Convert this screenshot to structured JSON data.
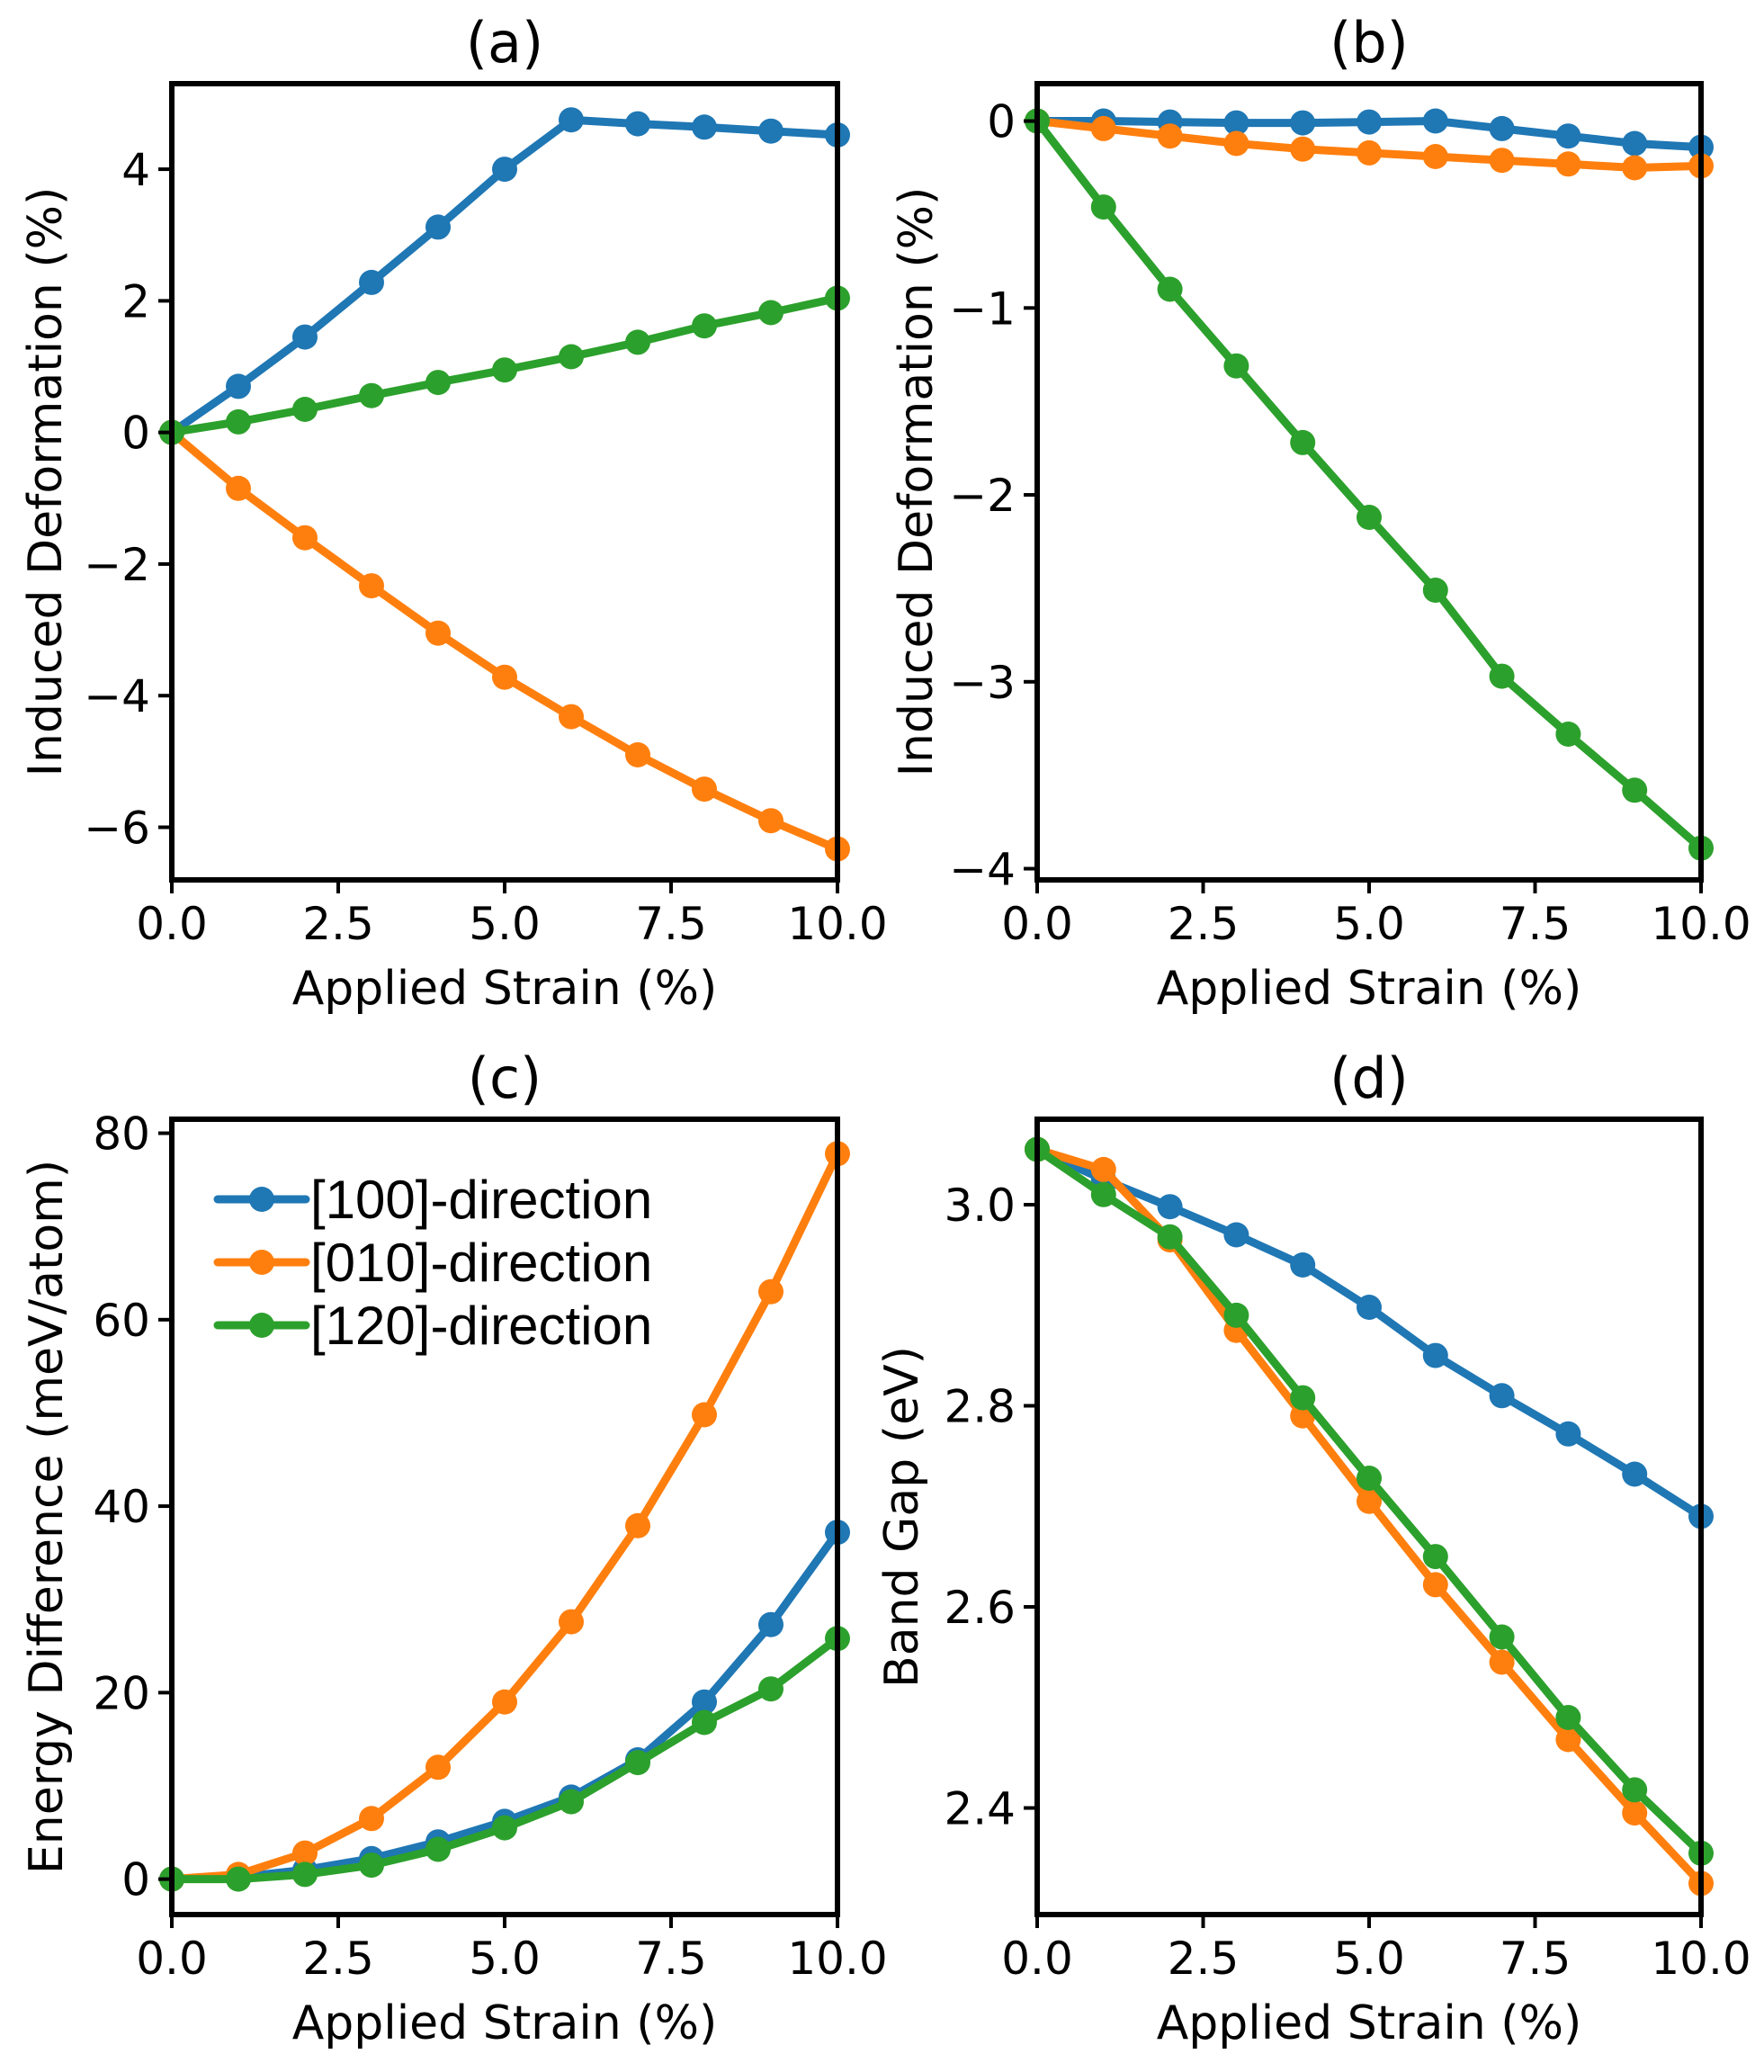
{
  "colors": {
    "series_100": "#1f77b4",
    "series_010": "#ff7f0e",
    "series_120": "#2ca02c"
  },
  "chart_data": [
    {
      "type": "line",
      "panel": "a",
      "title": "(a)",
      "xlabel": "Applied Strain (%)",
      "ylabel": "Induced Deformation (%)",
      "xlim": [
        0,
        10
      ],
      "ylim": [
        -6.8,
        5.3
      ],
      "xticks": [
        0,
        2.5,
        5,
        7.5,
        10
      ],
      "xtick_labels": [
        "0.0",
        "2.5",
        "5.0",
        "7.5",
        "10.0"
      ],
      "yticks": [
        -6,
        -4,
        -2,
        0,
        2,
        4
      ],
      "ytick_labels": [
        "−6",
        "−4",
        "−2",
        "0",
        "2",
        "4"
      ],
      "x": [
        0,
        1,
        2,
        3,
        4,
        5,
        6,
        7,
        8,
        9,
        10
      ],
      "series": [
        {
          "name": "[100]-direction",
          "color_key": "series_100",
          "values": [
            0,
            0.7,
            1.45,
            2.28,
            3.12,
            4.0,
            4.75,
            4.69,
            4.64,
            4.58,
            4.52
          ]
        },
        {
          "name": "[010]-direction",
          "color_key": "series_010",
          "values": [
            0,
            -0.85,
            -1.6,
            -2.33,
            -3.05,
            -3.72,
            -4.32,
            -4.9,
            -5.42,
            -5.9,
            -6.33
          ]
        },
        {
          "name": "[120]-direction",
          "color_key": "series_120",
          "values": [
            0,
            0.16,
            0.35,
            0.56,
            0.76,
            0.95,
            1.15,
            1.37,
            1.62,
            1.82,
            2.04
          ]
        }
      ]
    },
    {
      "type": "line",
      "panel": "b",
      "title": "(b)",
      "xlabel": "Applied Strain (%)",
      "ylabel": "Induced Deformation (%)",
      "xlim": [
        0,
        10
      ],
      "ylim": [
        -4.06,
        0.2
      ],
      "xticks": [
        0,
        2.5,
        5,
        7.5,
        10
      ],
      "xtick_labels": [
        "0.0",
        "2.5",
        "5.0",
        "7.5",
        "10.0"
      ],
      "yticks": [
        -4,
        -3,
        -2,
        -1,
        0
      ],
      "ytick_labels": [
        "−4",
        "−3",
        "−2",
        "−1",
        "0"
      ],
      "x": [
        0,
        1,
        2,
        3,
        4,
        5,
        6,
        7,
        8,
        9,
        10
      ],
      "series": [
        {
          "name": "[100]-direction",
          "color_key": "series_100",
          "values": [
            0,
            0,
            -0.005,
            -0.01,
            -0.01,
            -0.005,
            0,
            -0.04,
            -0.08,
            -0.12,
            -0.14
          ]
        },
        {
          "name": "[010]-direction",
          "color_key": "series_010",
          "values": [
            0,
            -0.04,
            -0.08,
            -0.12,
            -0.15,
            -0.17,
            -0.19,
            -0.21,
            -0.23,
            -0.25,
            -0.24
          ]
        },
        {
          "name": "[120]-direction",
          "color_key": "series_120",
          "values": [
            0,
            -0.46,
            -0.9,
            -1.31,
            -1.72,
            -2.12,
            -2.51,
            -2.97,
            -3.28,
            -3.58,
            -3.89
          ]
        }
      ]
    },
    {
      "type": "line",
      "panel": "c",
      "title": "(c)",
      "xlabel": "Applied Strain (%)",
      "ylabel": "Energy Difference (meV/atom)",
      "xlim": [
        0,
        10
      ],
      "ylim": [
        -3.8,
        81.5
      ],
      "xticks": [
        0,
        2.5,
        5,
        7.5,
        10
      ],
      "xtick_labels": [
        "0.0",
        "2.5",
        "5.0",
        "7.5",
        "10.0"
      ],
      "yticks": [
        0,
        20,
        40,
        60,
        80
      ],
      "ytick_labels": [
        "0",
        "20",
        "40",
        "60",
        "80"
      ],
      "x": [
        0,
        1,
        2,
        3,
        4,
        5,
        6,
        7,
        8,
        9,
        10
      ],
      "legend": {
        "location": "upper-left",
        "entries": [
          "[100]-direction",
          "[010]-direction",
          "[120]-direction"
        ]
      },
      "series": [
        {
          "name": "[100]-direction",
          "color_key": "series_100",
          "values": [
            0,
            0.2,
            1.0,
            2.2,
            4.0,
            6.2,
            8.8,
            12.8,
            19.0,
            27.3,
            37.2
          ]
        },
        {
          "name": "[010]-direction",
          "color_key": "series_010",
          "values": [
            0,
            0.5,
            2.8,
            6.5,
            12.0,
            19.0,
            27.6,
            37.9,
            49.8,
            63.0,
            77.8
          ]
        },
        {
          "name": "[120]-direction",
          "color_key": "series_120",
          "values": [
            0,
            0,
            0.5,
            1.5,
            3.2,
            5.5,
            8.3,
            12.5,
            16.8,
            20.4,
            25.8
          ]
        }
      ]
    },
    {
      "type": "line",
      "panel": "d",
      "title": "(d)",
      "xlabel": "Applied Strain (%)",
      "ylabel": "Band Gap (eV)",
      "xlim": [
        0,
        10
      ],
      "ylim": [
        2.294,
        3.085
      ],
      "xticks": [
        0,
        2.5,
        5,
        7.5,
        10
      ],
      "xtick_labels": [
        "0.0",
        "2.5",
        "5.0",
        "7.5",
        "10.0"
      ],
      "yticks": [
        2.4,
        2.6,
        2.8,
        3.0
      ],
      "ytick_labels": [
        "2.4",
        "2.6",
        "2.8",
        "3.0"
      ],
      "x": [
        0,
        1,
        2,
        3,
        4,
        5,
        6,
        7,
        8,
        9,
        10
      ],
      "series": [
        {
          "name": "[100]-direction",
          "color_key": "series_100",
          "values": [
            3.055,
            3.025,
            2.998,
            2.97,
            2.94,
            2.898,
            2.85,
            2.81,
            2.772,
            2.732,
            2.69
          ]
        },
        {
          "name": "[010]-direction",
          "color_key": "series_010",
          "values": [
            3.055,
            3.035,
            2.965,
            2.875,
            2.79,
            2.705,
            2.622,
            2.545,
            2.468,
            2.395,
            2.325
          ]
        },
        {
          "name": "[120]-direction",
          "color_key": "series_120",
          "values": [
            3.055,
            3.01,
            2.968,
            2.89,
            2.808,
            2.728,
            2.65,
            2.57,
            2.49,
            2.418,
            2.355
          ]
        }
      ]
    }
  ]
}
